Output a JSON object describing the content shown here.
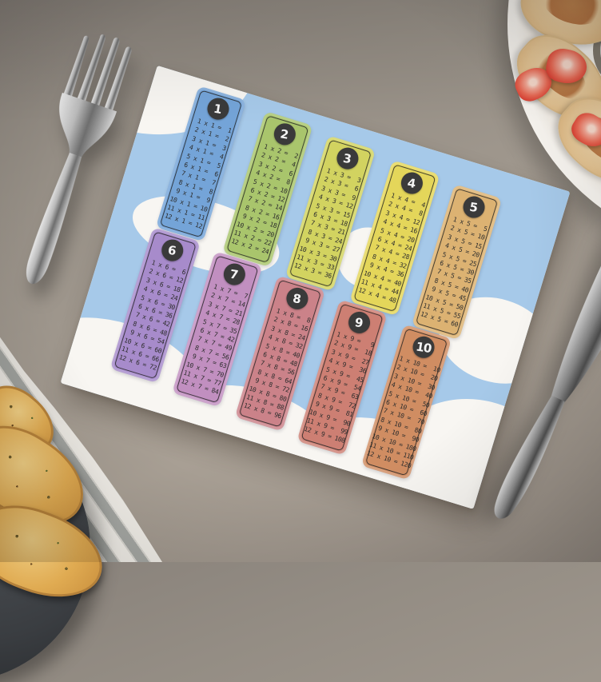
{
  "placemat": {
    "background_color": "#a6c9e9",
    "sheet_color": "#f8f6f2",
    "badge_color": "#3a3a3a",
    "badge_text_color": "#f5f5f5",
    "equation_text_color": "#2e2e2e",
    "tables": [
      {
        "number": "1",
        "color": "#74a4d8",
        "rows": [
          " 1 x 1 =  1",
          " 2 x 1 =  2",
          " 3 x 1 =  3",
          " 4 x 1 =  4",
          " 5 x 1 =  5",
          " 6 x 1 =  6",
          " 7 x 1 =  7",
          " 8 x 1 =  8",
          " 9 x 1 =  9",
          "10 x 1 = 10",
          "11 x 1 = 11",
          "12 x 1 = 12"
        ]
      },
      {
        "number": "2",
        "color": "#a9c56c",
        "rows": [
          " 1 x 2 =  2",
          " 2 x 2 =  4",
          " 3 x 2 =  6",
          " 4 x 2 =  8",
          " 5 x 2 = 10",
          " 6 x 2 = 12",
          " 7 x 2 = 14",
          " 8 x 2 = 16",
          " 9 x 2 = 18",
          "10 x 2 = 20",
          "11 x 2 = 22",
          "12 x 2 = 24"
        ]
      },
      {
        "number": "3",
        "color": "#d2d360",
        "rows": [
          " 1 x 3 =  3",
          " 2 x 3 =  6",
          " 3 x 3 =  9",
          " 4 x 3 = 12",
          " 5 x 3 = 15",
          " 6 x 3 = 18",
          " 7 x 3 = 21",
          " 8 x 3 = 24",
          " 9 x 3 = 27",
          "10 x 3 = 30",
          "11 x 3 = 33",
          "12 x 3 = 36"
        ]
      },
      {
        "number": "4",
        "color": "#e4d65a",
        "rows": [
          " 1 x 4 =  4",
          " 2 x 4 =  8",
          " 3 x 4 = 12",
          " 4 x 4 = 16",
          " 5 x 4 = 20",
          " 6 x 4 = 24",
          " 7 x 4 = 28",
          " 8 x 4 = 32",
          " 9 x 4 = 36",
          "10 x 4 = 40",
          "11 x 4 = 44",
          "12 x 4 = 48"
        ]
      },
      {
        "number": "5",
        "color": "#dcb272",
        "rows": [
          " 1 x 5 =  5",
          " 2 x 5 = 10",
          " 3 x 5 = 15",
          " 4 x 5 = 20",
          " 5 x 5 = 25",
          " 6 x 5 = 30",
          " 7 x 5 = 35",
          " 8 x 5 = 40",
          " 9 x 5 = 45",
          "10 x 5 = 50",
          "11 x 5 = 55",
          "12 x 5 = 60"
        ]
      },
      {
        "number": "6",
        "color": "#a78bcb",
        "rows": [
          " 1 x 6 =  6",
          " 2 x 6 = 12",
          " 3 x 6 = 18",
          " 4 x 6 = 24",
          " 5 x 6 = 30",
          " 6 x 6 = 36",
          " 7 x 6 = 42",
          " 8 x 6 = 48",
          " 9 x 6 = 54",
          "10 x 6 = 60",
          "11 x 6 = 66",
          "12 x 6 = 72"
        ]
      },
      {
        "number": "7",
        "color": "#c18fc0",
        "rows": [
          " 1 x 7 =  7",
          " 2 x 7 = 14",
          " 3 x 7 = 21",
          " 4 x 7 = 28",
          " 5 x 7 = 35",
          " 6 x 7 = 42",
          " 7 x 7 = 49",
          " 8 x 7 = 56",
          " 9 x 7 = 63",
          "10 x 7 = 70",
          "11 x 7 = 77",
          "12 x 7 = 84"
        ]
      },
      {
        "number": "8",
        "color": "#cb8289",
        "rows": [
          " 1 x 8 =  8",
          " 2 x 8 = 16",
          " 3 x 8 = 24",
          " 4 x 8 = 32",
          " 5 x 8 = 40",
          " 6 x 8 = 48",
          " 7 x 8 = 56",
          " 8 x 8 = 64",
          " 9 x 8 = 72",
          "10 x 8 = 80",
          "11 x 8 = 88",
          "12 x 8 = 96"
        ]
      },
      {
        "number": "9",
        "color": "#cd7f73",
        "rows": [
          " 1 x 9 =   9",
          " 2 x 9 =  18",
          " 3 x 9 =  27",
          " 4 x 9 =  36",
          " 5 x 9 =  45",
          " 6 x 9 =  54",
          " 7 x 9 =  63",
          " 8 x 9 =  72",
          " 9 x 9 =  81",
          "10 x 9 =  90",
          "11 x 9 =  99",
          "12 x 9 = 108"
        ]
      },
      {
        "number": "10",
        "color": "#d08d62",
        "rows": [
          " 1 x 10 =  10",
          " 2 x 10 =  20",
          " 3 x 10 =  30",
          " 4 x 10 =  40",
          " 5 x 10 =  50",
          " 6 x 10 =  60",
          " 7 x 10 =  70",
          " 8 x 10 =  80",
          " 9 x 10 =  90",
          "10 x 10 = 100",
          "11 x 10 = 110",
          "12 x 10 = 120"
        ]
      }
    ]
  },
  "scene": {
    "table_color": "#9c948a",
    "napkin_stripe_light": "#f1eee8",
    "napkin_stripe_dark": "#a6a8a4",
    "white_plate_color": "#f8f5f0",
    "dark_plate_color": "#3a3d41",
    "bread_color": "#e0ab52",
    "strawberry_color": "#d93a2e",
    "silverware_color": "#c9c9c9"
  }
}
